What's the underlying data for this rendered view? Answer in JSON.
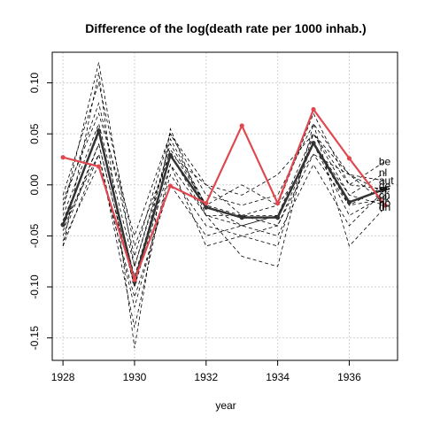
{
  "chart_data": {
    "type": "line",
    "title": "Difference of the log(death rate per 1000 inhab.)",
    "xlabel": "year",
    "ylabel": "",
    "xlim": [
      1927.7,
      1937.35
    ],
    "ylim": [
      -0.172,
      0.13
    ],
    "x_ticks": [
      1928,
      1930,
      1932,
      1934,
      1936
    ],
    "y_ticks": [
      -0.15,
      -0.1,
      -0.05,
      0.0,
      0.05,
      0.1
    ],
    "y_tick_labels": [
      "-0.15",
      "-0.10",
      "-0.05",
      "0.00",
      "0.05",
      "0.10"
    ],
    "grid": true,
    "x": [
      1928,
      1929,
      1930,
      1931,
      1932,
      1933,
      1934,
      1935,
      1936,
      1937
    ],
    "colors": {
      "highlight": "#e0484f",
      "mean": "#333333",
      "others": "#000000"
    },
    "highlight_series": {
      "values": [
        0.027,
        0.018,
        -0.093,
        -0.001,
        -0.018,
        0.058,
        -0.018,
        0.074,
        0.026,
        -0.02
      ]
    },
    "mean_series": {
      "values": [
        -0.039,
        0.053,
        -0.095,
        0.029,
        -0.022,
        -0.032,
        -0.032,
        0.041,
        -0.017,
        -0.004
      ]
    },
    "series": [
      {
        "name": "be",
        "values": [
          -0.03,
          0.06,
          -0.08,
          0.04,
          -0.02,
          -0.03,
          -0.03,
          0.05,
          0.0,
          0.023
        ]
      },
      {
        "name": "nl",
        "values": [
          -0.045,
          0.04,
          -0.1,
          0.02,
          -0.03,
          -0.04,
          -0.03,
          0.04,
          -0.01,
          0.012
        ]
      },
      {
        "name": "aut",
        "values": [
          -0.02,
          0.08,
          -0.07,
          0.05,
          -0.01,
          -0.02,
          -0.01,
          0.06,
          0.01,
          0.004
        ]
      },
      {
        "name": "de",
        "values": [
          -0.06,
          0.03,
          -0.12,
          0.01,
          -0.04,
          -0.05,
          -0.04,
          0.03,
          -0.02,
          -0.001
        ]
      },
      {
        "name": "se",
        "values": [
          -0.01,
          0.1,
          -0.06,
          0.03,
          0.0,
          -0.03,
          -0.02,
          0.07,
          0.0,
          -0.004
        ]
      },
      {
        "name": "ch",
        "values": [
          -0.05,
          0.04,
          -0.1,
          0.045,
          -0.02,
          -0.04,
          -0.03,
          0.04,
          -0.03,
          -0.01
        ]
      },
      {
        "name": "dk",
        "values": [
          -0.035,
          0.05,
          -0.09,
          0.03,
          -0.03,
          -0.03,
          -0.04,
          0.04,
          -0.02,
          -0.014
        ]
      },
      {
        "name": "no",
        "values": [
          -0.025,
          0.12,
          -0.08,
          0.035,
          -0.02,
          0.0,
          -0.02,
          0.03,
          0.01,
          -0.018
        ]
      },
      {
        "name": "fi",
        "values": [
          -0.04,
          0.03,
          -0.14,
          0.02,
          -0.06,
          -0.05,
          -0.06,
          0.05,
          -0.01,
          -0.02
        ]
      },
      {
        "name": "dn",
        "values": [
          -0.06,
          0.11,
          -0.16,
          0.055,
          -0.03,
          -0.07,
          -0.08,
          0.06,
          -0.06,
          -0.022
        ]
      },
      {
        "name": "",
        "values": [
          -0.055,
          0.02,
          -0.11,
          0.0,
          -0.05,
          -0.04,
          -0.05,
          0.02,
          -0.04,
          -0.005
        ]
      },
      {
        "name": "",
        "values": [
          -0.015,
          0.07,
          -0.05,
          0.05,
          0.0,
          -0.01,
          0.01,
          0.05,
          0.01,
          -0.008
        ]
      }
    ]
  }
}
